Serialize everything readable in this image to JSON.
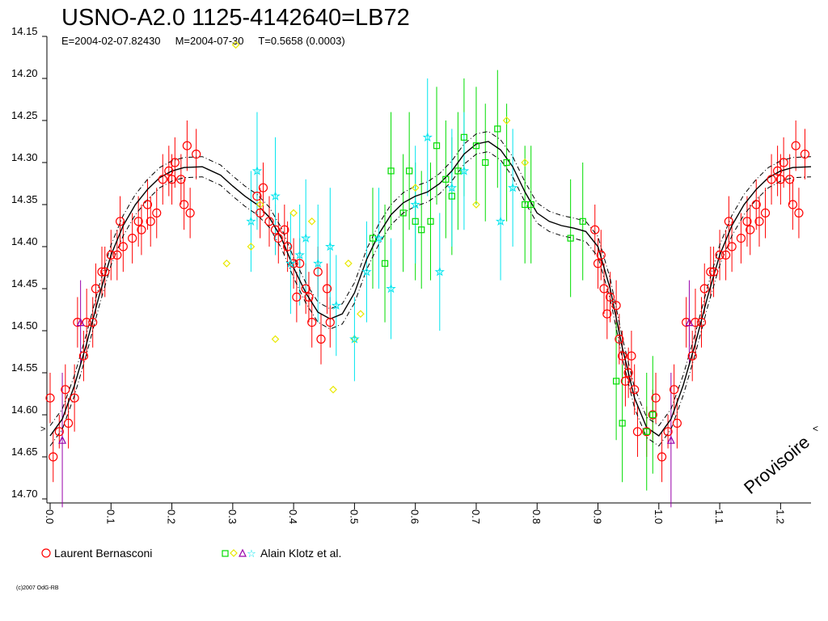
{
  "title": "USNO-A2.0 1125-4142640=LB72",
  "subtitle": "E=2004-02-07.82430     M=2004-07-30     T=0.5658 (0.0003)",
  "watermark": "Provisoire",
  "credit": "(c)2007 OdG-RB",
  "legend": {
    "observer1": "Laurent Bernasconi",
    "observer2": "Alain Klotz et al."
  },
  "colors": {
    "bernasconi": "#ff0000",
    "klotz_green": "#00dd00",
    "klotz_yellow": "#e8e800",
    "klotz_violet": "#9900aa",
    "klotz_cyan": "#00e5ee",
    "fit": "#000000"
  },
  "chart_data": {
    "type": "scatter",
    "x_label": "",
    "y_label": "",
    "xlim": [
      0.0,
      1.25
    ],
    "ylim": [
      14.15,
      14.7
    ],
    "y_inverted": true,
    "x_ticks": [
      "0.0",
      "0.1",
      "0.2",
      "0.3",
      "0.4",
      "0.5",
      "0.6",
      "0.7",
      "0.8",
      "0.9",
      "1.0",
      "1.1",
      "1.2"
    ],
    "y_ticks": [
      "14.15",
      "14.20",
      "14.25",
      "14.30",
      "14.35",
      "14.40",
      "14.45",
      "14.50",
      "14.55",
      "14.60",
      "14.65",
      "14.70"
    ],
    "fit_curve": [
      [
        0.0,
        14.625
      ],
      [
        0.02,
        14.605
      ],
      [
        0.04,
        14.565
      ],
      [
        0.06,
        14.515
      ],
      [
        0.08,
        14.46
      ],
      [
        0.1,
        14.41
      ],
      [
        0.12,
        14.375
      ],
      [
        0.14,
        14.35
      ],
      [
        0.16,
        14.332
      ],
      [
        0.18,
        14.318
      ],
      [
        0.2,
        14.31
      ],
      [
        0.22,
        14.306
      ],
      [
        0.25,
        14.305
      ],
      [
        0.28,
        14.315
      ],
      [
        0.3,
        14.328
      ],
      [
        0.32,
        14.34
      ],
      [
        0.34,
        14.35
      ],
      [
        0.36,
        14.365
      ],
      [
        0.38,
        14.39
      ],
      [
        0.4,
        14.425
      ],
      [
        0.42,
        14.455
      ],
      [
        0.44,
        14.478
      ],
      [
        0.46,
        14.486
      ],
      [
        0.48,
        14.48
      ],
      [
        0.5,
        14.455
      ],
      [
        0.52,
        14.415
      ],
      [
        0.54,
        14.385
      ],
      [
        0.56,
        14.362
      ],
      [
        0.58,
        14.348
      ],
      [
        0.6,
        14.34
      ],
      [
        0.62,
        14.335
      ],
      [
        0.64,
        14.325
      ],
      [
        0.66,
        14.31
      ],
      [
        0.68,
        14.29
      ],
      [
        0.7,
        14.278
      ],
      [
        0.72,
        14.275
      ],
      [
        0.74,
        14.285
      ],
      [
        0.76,
        14.305
      ],
      [
        0.78,
        14.335
      ],
      [
        0.8,
        14.36
      ],
      [
        0.82,
        14.37
      ],
      [
        0.84,
        14.375
      ],
      [
        0.86,
        14.378
      ],
      [
        0.88,
        14.382
      ],
      [
        0.9,
        14.4
      ],
      [
        0.92,
        14.45
      ],
      [
        0.94,
        14.52
      ],
      [
        0.96,
        14.58
      ],
      [
        0.98,
        14.615
      ],
      [
        1.0,
        14.625
      ],
      [
        1.02,
        14.605
      ],
      [
        1.04,
        14.565
      ],
      [
        1.06,
        14.515
      ],
      [
        1.08,
        14.46
      ],
      [
        1.1,
        14.41
      ],
      [
        1.12,
        14.375
      ],
      [
        1.14,
        14.35
      ],
      [
        1.16,
        14.332
      ],
      [
        1.18,
        14.318
      ],
      [
        1.2,
        14.31
      ],
      [
        1.22,
        14.306
      ],
      [
        1.25,
        14.305
      ]
    ],
    "fit_band": 0.012,
    "series": [
      {
        "name": "Laurent Bernasconi",
        "marker": "circle",
        "points": [
          [
            0.0,
            14.58,
            0.03
          ],
          [
            0.005,
            14.65,
            0.03
          ],
          [
            0.015,
            14.62,
            0.02
          ],
          [
            0.025,
            14.57,
            0.03
          ],
          [
            0.03,
            14.61,
            0.03
          ],
          [
            0.04,
            14.58,
            0.04
          ],
          [
            0.045,
            14.49,
            0.03
          ],
          [
            0.055,
            14.53,
            0.03
          ],
          [
            0.06,
            14.49,
            0.04
          ],
          [
            0.07,
            14.49,
            0.03
          ],
          [
            0.075,
            14.45,
            0.03
          ],
          [
            0.085,
            14.43,
            0.03
          ],
          [
            0.09,
            14.43,
            0.03
          ],
          [
            0.1,
            14.41,
            0.03
          ],
          [
            0.11,
            14.41,
            0.03
          ],
          [
            0.115,
            14.37,
            0.03
          ],
          [
            0.12,
            14.4,
            0.03
          ],
          [
            0.135,
            14.39,
            0.03
          ],
          [
            0.145,
            14.37,
            0.03
          ],
          [
            0.15,
            14.38,
            0.03
          ],
          [
            0.16,
            14.35,
            0.03
          ],
          [
            0.165,
            14.37,
            0.03
          ],
          [
            0.175,
            14.36,
            0.03
          ],
          [
            0.185,
            14.32,
            0.03
          ],
          [
            0.195,
            14.31,
            0.03
          ],
          [
            0.2,
            14.32,
            0.03
          ],
          [
            0.205,
            14.3,
            0.03
          ],
          [
            0.215,
            14.32,
            0.03
          ],
          [
            0.22,
            14.35,
            0.03
          ],
          [
            0.225,
            14.28,
            0.03
          ],
          [
            0.23,
            14.36,
            0.03
          ],
          [
            0.24,
            14.29,
            0.03
          ],
          [
            0.34,
            14.34,
            0.03
          ],
          [
            0.345,
            14.36,
            0.03
          ],
          [
            0.35,
            14.33,
            0.03
          ],
          [
            0.36,
            14.37,
            0.03
          ],
          [
            0.37,
            14.38,
            0.03
          ],
          [
            0.375,
            14.39,
            0.03
          ],
          [
            0.385,
            14.38,
            0.03
          ],
          [
            0.39,
            14.4,
            0.03
          ],
          [
            0.4,
            14.42,
            0.03
          ],
          [
            0.405,
            14.46,
            0.03
          ],
          [
            0.41,
            14.42,
            0.03
          ],
          [
            0.42,
            14.45,
            0.03
          ],
          [
            0.425,
            14.46,
            0.03
          ],
          [
            0.43,
            14.49,
            0.03
          ],
          [
            0.44,
            14.43,
            0.03
          ],
          [
            0.445,
            14.51,
            0.03
          ],
          [
            0.455,
            14.45,
            0.03
          ],
          [
            0.46,
            14.49,
            0.03
          ],
          [
            0.895,
            14.38,
            0.03
          ],
          [
            0.9,
            14.42,
            0.03
          ],
          [
            0.905,
            14.41,
            0.03
          ],
          [
            0.91,
            14.45,
            0.03
          ],
          [
            0.915,
            14.48,
            0.03
          ],
          [
            0.92,
            14.46,
            0.03
          ],
          [
            0.93,
            14.47,
            0.03
          ],
          [
            0.935,
            14.51,
            0.03
          ],
          [
            0.94,
            14.53,
            0.03
          ],
          [
            0.945,
            14.56,
            0.03
          ],
          [
            0.95,
            14.55,
            0.03
          ],
          [
            0.955,
            14.53,
            0.03
          ],
          [
            0.96,
            14.57,
            0.03
          ],
          [
            0.965,
            14.62,
            0.03
          ],
          [
            0.98,
            14.62,
            0.03
          ],
          [
            0.99,
            14.6,
            0.03
          ],
          [
            0.995,
            14.58,
            0.03
          ],
          [
            1.005,
            14.65,
            0.03
          ],
          [
            1.015,
            14.62,
            0.02
          ],
          [
            1.025,
            14.57,
            0.03
          ],
          [
            1.03,
            14.61,
            0.03
          ],
          [
            1.045,
            14.49,
            0.03
          ],
          [
            1.055,
            14.53,
            0.03
          ],
          [
            1.06,
            14.49,
            0.04
          ],
          [
            1.07,
            14.49,
            0.03
          ],
          [
            1.075,
            14.45,
            0.03
          ],
          [
            1.085,
            14.43,
            0.03
          ],
          [
            1.09,
            14.43,
            0.03
          ],
          [
            1.1,
            14.41,
            0.03
          ],
          [
            1.11,
            14.41,
            0.03
          ],
          [
            1.115,
            14.37,
            0.03
          ],
          [
            1.12,
            14.4,
            0.03
          ],
          [
            1.135,
            14.39,
            0.03
          ],
          [
            1.145,
            14.37,
            0.03
          ],
          [
            1.15,
            14.38,
            0.03
          ],
          [
            1.16,
            14.35,
            0.03
          ],
          [
            1.165,
            14.37,
            0.03
          ],
          [
            1.175,
            14.36,
            0.03
          ],
          [
            1.185,
            14.32,
            0.03
          ],
          [
            1.195,
            14.31,
            0.03
          ],
          [
            1.2,
            14.32,
            0.03
          ],
          [
            1.205,
            14.3,
            0.03
          ],
          [
            1.215,
            14.32,
            0.03
          ],
          [
            1.22,
            14.35,
            0.03
          ],
          [
            1.225,
            14.28,
            0.03
          ],
          [
            1.23,
            14.36,
            0.03
          ],
          [
            1.24,
            14.29,
            0.03
          ]
        ]
      },
      {
        "name": "Alain Klotz et al.",
        "marker": "square",
        "points": [
          [
            0.53,
            14.39,
            0.06
          ],
          [
            0.55,
            14.42,
            0.07
          ],
          [
            0.56,
            14.31,
            0.07
          ],
          [
            0.58,
            14.36,
            0.07
          ],
          [
            0.59,
            14.31,
            0.07
          ],
          [
            0.6,
            14.37,
            0.07
          ],
          [
            0.61,
            14.38,
            0.07
          ],
          [
            0.625,
            14.37,
            0.07
          ],
          [
            0.635,
            14.28,
            0.07
          ],
          [
            0.65,
            14.32,
            0.07
          ],
          [
            0.66,
            14.34,
            0.07
          ],
          [
            0.67,
            14.31,
            0.07
          ],
          [
            0.68,
            14.27,
            0.07
          ],
          [
            0.7,
            14.28,
            0.07
          ],
          [
            0.715,
            14.3,
            0.07
          ],
          [
            0.735,
            14.26,
            0.07
          ],
          [
            0.75,
            14.3,
            0.07
          ],
          [
            0.78,
            14.35,
            0.07
          ],
          [
            0.79,
            14.35,
            0.07
          ],
          [
            0.855,
            14.39,
            0.07
          ],
          [
            0.875,
            14.37,
            0.07
          ],
          [
            0.93,
            14.56,
            0.07
          ],
          [
            0.94,
            14.61,
            0.07
          ],
          [
            0.98,
            14.62,
            0.07
          ],
          [
            0.99,
            14.6,
            0.07
          ]
        ]
      },
      {
        "name": "",
        "marker": "diamond",
        "points": [
          [
            0.29,
            14.42,
            0
          ],
          [
            0.305,
            14.16,
            0
          ],
          [
            0.33,
            14.4,
            0
          ],
          [
            0.345,
            14.35,
            0
          ],
          [
            0.37,
            14.51,
            0
          ],
          [
            0.4,
            14.36,
            0
          ],
          [
            0.43,
            14.37,
            0
          ],
          [
            0.465,
            14.57,
            0
          ],
          [
            0.49,
            14.42,
            0
          ],
          [
            0.5,
            14.51,
            0
          ],
          [
            0.51,
            14.48,
            0
          ],
          [
            0.6,
            14.33,
            0
          ],
          [
            0.7,
            14.35,
            0
          ],
          [
            0.75,
            14.25,
            0
          ],
          [
            0.78,
            14.3,
            0
          ]
        ]
      },
      {
        "name": "",
        "marker": "triangle",
        "points": [
          [
            0.02,
            14.63,
            0.08
          ],
          [
            0.05,
            14.49,
            0.05
          ],
          [
            1.02,
            14.63,
            0.08
          ],
          [
            1.05,
            14.49,
            0.05
          ]
        ]
      },
      {
        "name": "",
        "marker": "star",
        "points": [
          [
            0.33,
            14.37,
            0.06
          ],
          [
            0.34,
            14.31,
            0.07
          ],
          [
            0.37,
            14.34,
            0.07
          ],
          [
            0.395,
            14.42,
            0.06
          ],
          [
            0.41,
            14.41,
            0.06
          ],
          [
            0.42,
            14.39,
            0.07
          ],
          [
            0.44,
            14.42,
            0.07
          ],
          [
            0.46,
            14.4,
            0.07
          ],
          [
            0.47,
            14.47,
            0.06
          ],
          [
            0.5,
            14.51,
            0.05
          ],
          [
            0.52,
            14.43,
            0.06
          ],
          [
            0.54,
            14.39,
            0.06
          ],
          [
            0.56,
            14.45,
            0.06
          ],
          [
            0.6,
            14.35,
            0.07
          ],
          [
            0.62,
            14.27,
            0.07
          ],
          [
            0.64,
            14.43,
            0.07
          ],
          [
            0.66,
            14.33,
            0.07
          ],
          [
            0.68,
            14.31,
            0.07
          ],
          [
            0.74,
            14.37,
            0.07
          ],
          [
            0.76,
            14.33,
            0.07
          ]
        ]
      }
    ]
  }
}
